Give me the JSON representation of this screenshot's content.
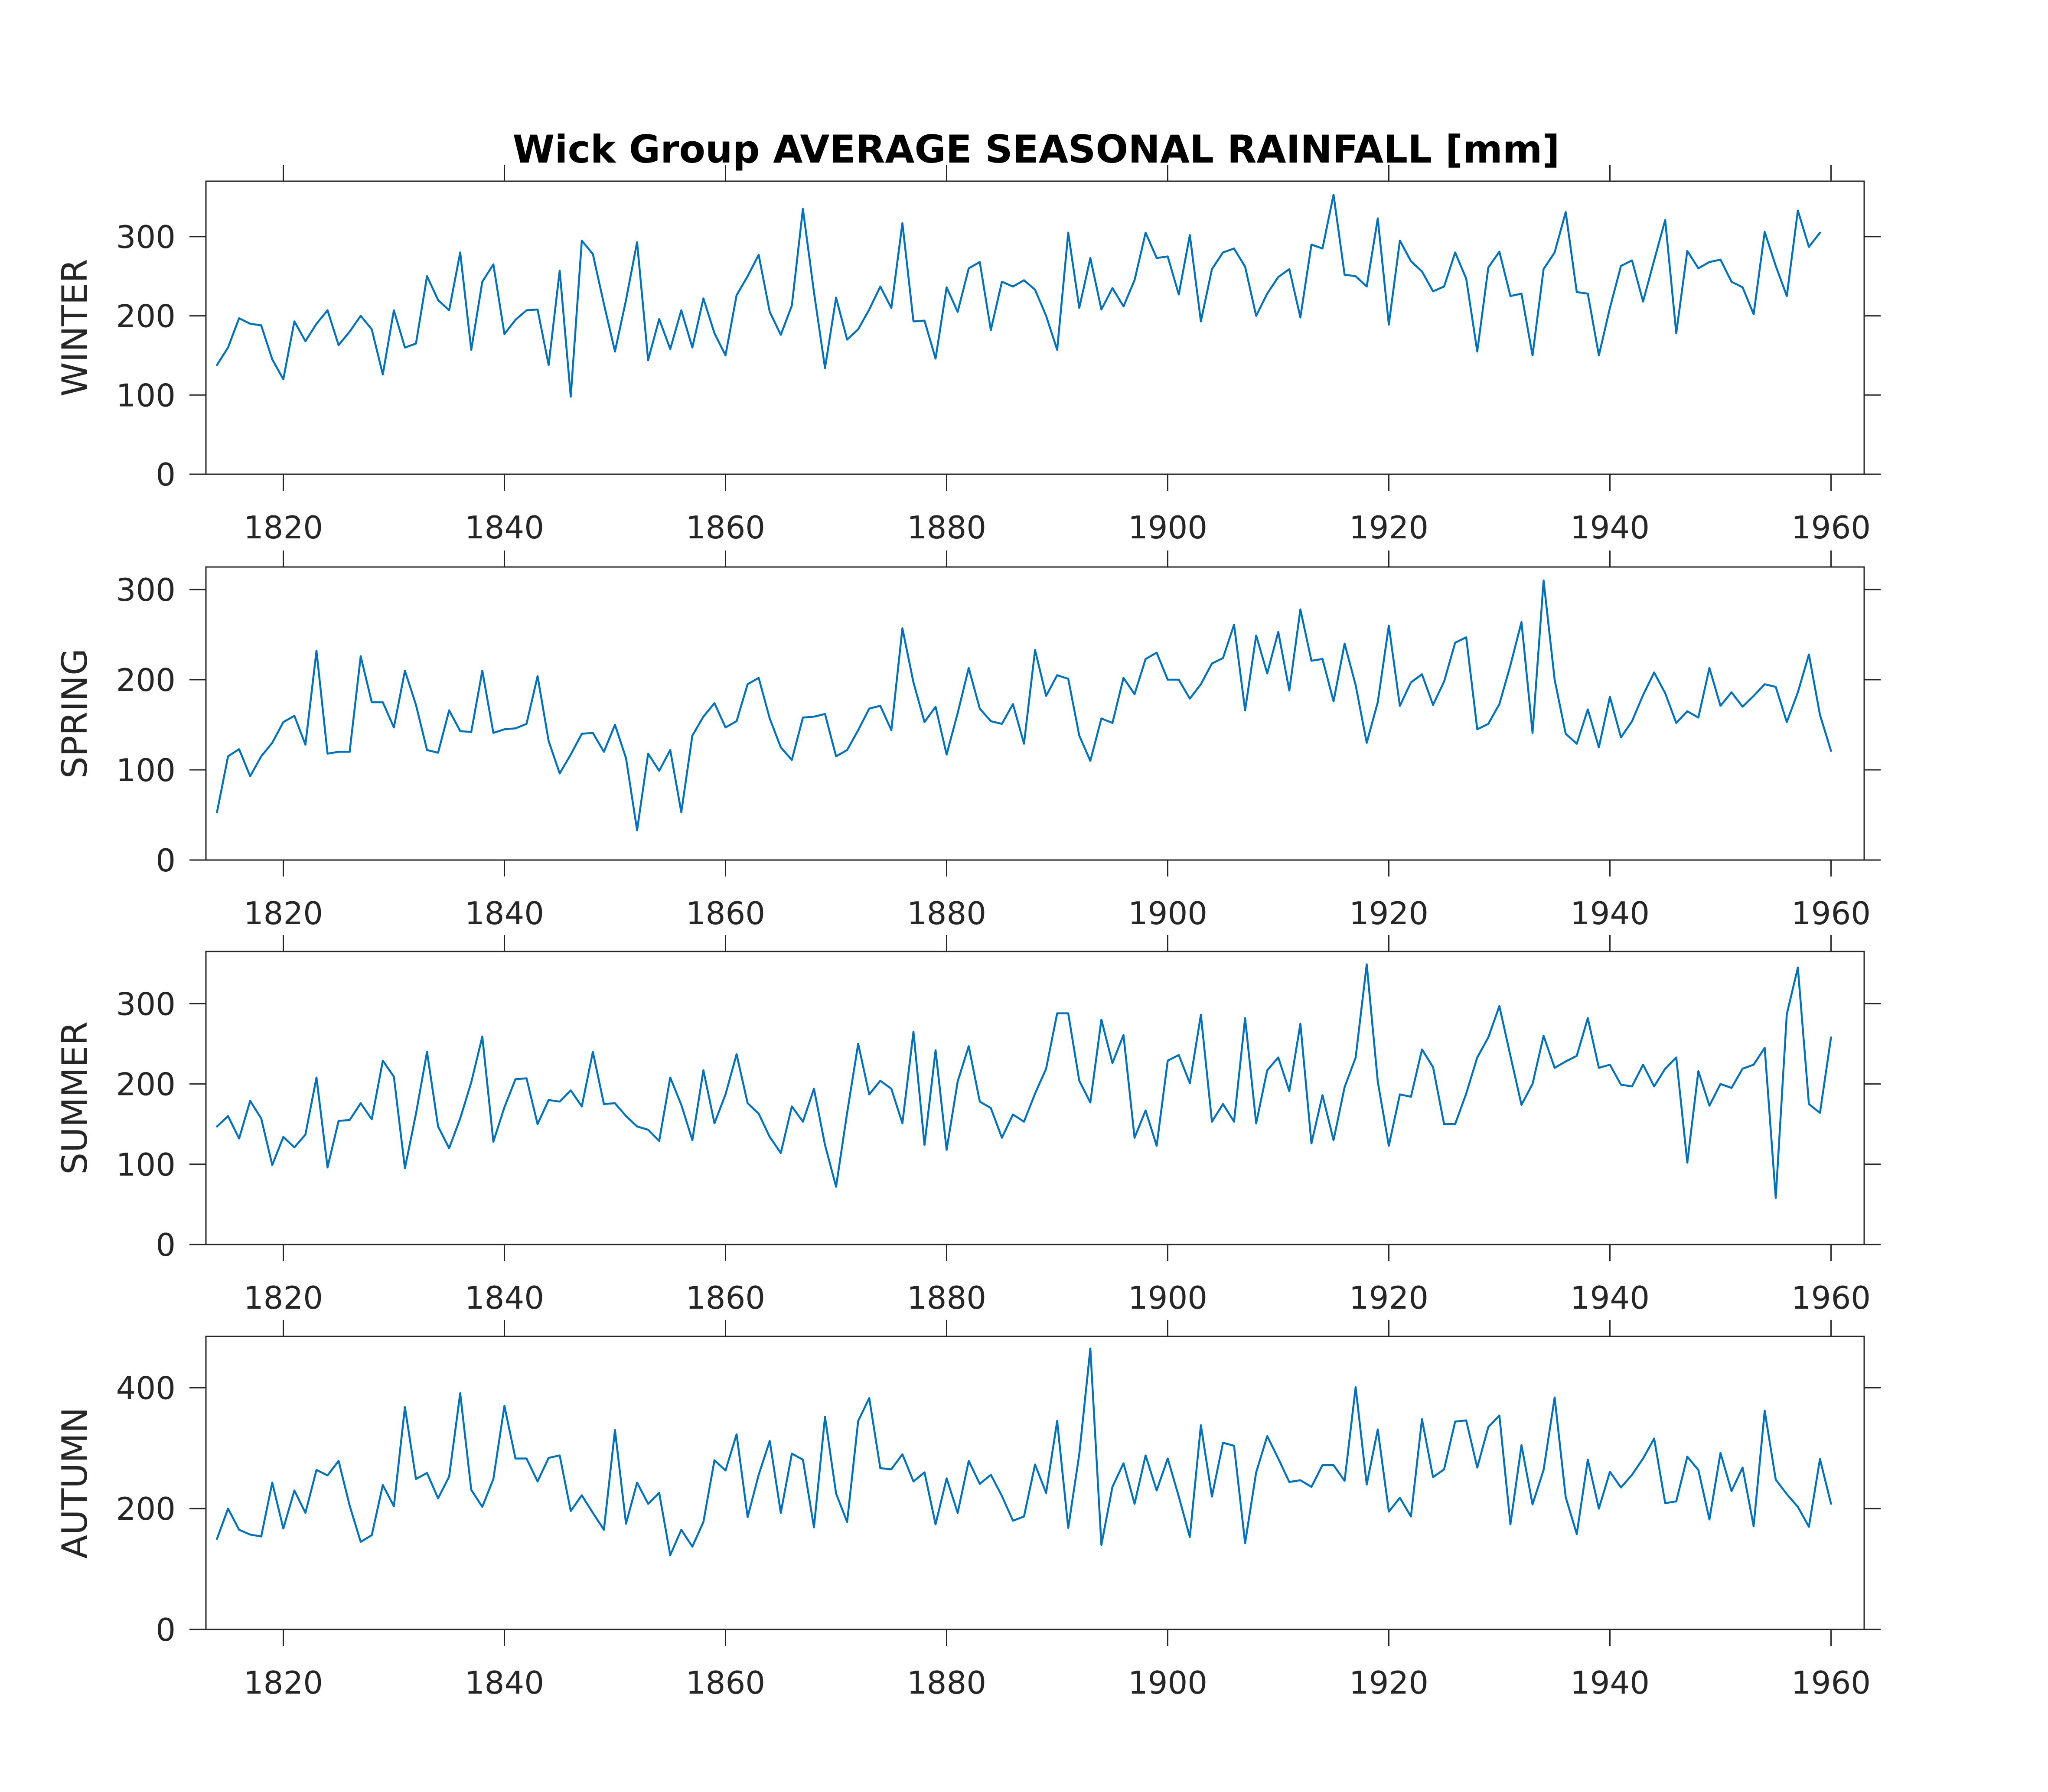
{
  "chart_data": {
    "type": "line",
    "title": "Wick Group AVERAGE SEASONAL RAINFALL [mm]",
    "line_color": "#0072BD",
    "x_start_year": 1814,
    "x_end_year": 1960,
    "xlim": [
      1813,
      1963
    ],
    "xticks": [
      1820,
      1840,
      1860,
      1880,
      1900,
      1920,
      1940,
      1960
    ],
    "panels": [
      {
        "ylabel": "WINTER",
        "ylim": [
          0,
          370
        ],
        "yticks": [
          0,
          100,
          200,
          300
        ],
        "values": [
          138,
          160,
          197,
          190,
          188,
          145,
          120,
          193,
          168,
          190,
          207,
          163,
          180,
          200,
          183,
          126,
          207,
          160,
          165,
          250,
          220,
          207,
          280,
          157,
          243,
          265,
          177,
          195,
          207,
          208,
          138,
          257,
          98,
          295,
          278,
          215,
          155,
          220,
          293,
          144,
          196,
          158,
          207,
          160,
          222,
          178,
          150,
          226,
          250,
          277,
          205,
          176,
          213,
          335,
          230,
          134,
          223,
          170,
          183,
          208,
          237,
          210,
          317,
          193,
          194,
          146,
          236,
          205,
          260,
          268,
          182,
          243,
          237,
          245,
          233,
          200,
          157,
          305,
          210,
          273,
          208,
          235,
          212,
          245,
          305,
          273,
          275,
          227,
          302,
          193,
          259,
          280,
          285,
          262,
          200,
          228,
          249,
          259,
          198,
          290,
          285,
          353,
          252,
          250,
          237,
          323,
          189,
          295,
          269,
          256,
          231,
          237,
          280,
          247,
          155,
          261,
          281,
          225,
          228,
          150,
          259,
          280,
          331,
          230,
          228,
          150,
          210,
          263,
          270,
          218,
          270,
          321,
          178,
          282,
          260,
          268,
          271,
          243,
          236,
          202,
          306,
          263,
          225,
          333,
          287,
          305
        ]
      },
      {
        "ylabel": "SPRING",
        "ylim": [
          0,
          325
        ],
        "yticks": [
          0,
          100,
          200,
          300
        ],
        "values": [
          53,
          115,
          123,
          93,
          115,
          130,
          153,
          160,
          128,
          232,
          118,
          120,
          120,
          226,
          175,
          175,
          147,
          210,
          172,
          122,
          119,
          166,
          143,
          142,
          210,
          141,
          145,
          146,
          151,
          204,
          132,
          96,
          117,
          140,
          141,
          120,
          150,
          113,
          33,
          118,
          99,
          122,
          53,
          138,
          159,
          174,
          147,
          154,
          195,
          202,
          157,
          125,
          111,
          158,
          159,
          162,
          115,
          122,
          144,
          168,
          171,
          144,
          257,
          197,
          153,
          170,
          117,
          163,
          213,
          168,
          154,
          151,
          173,
          129,
          233,
          182,
          205,
          201,
          138,
          110,
          157,
          152,
          202,
          184,
          223,
          230,
          200,
          200,
          179,
          195,
          218,
          224,
          261,
          166,
          249,
          207,
          253,
          188,
          278,
          221,
          223,
          176,
          240,
          194,
          130,
          175,
          260,
          171,
          197,
          206,
          172,
          198,
          241,
          247,
          145,
          151,
          173,
          216,
          264,
          141,
          310,
          200,
          140,
          129,
          167,
          125,
          181,
          136,
          154,
          183,
          208,
          185,
          152,
          165,
          158,
          213,
          171,
          186,
          170,
          182,
          195,
          192,
          153,
          186,
          228,
          161,
          121
        ]
      },
      {
        "ylabel": "SUMMER",
        "ylim": [
          0,
          365
        ],
        "yticks": [
          0,
          100,
          200,
          300
        ],
        "values": [
          147,
          160,
          132,
          179,
          157,
          99,
          134,
          121,
          137,
          208,
          96,
          154,
          155,
          176,
          156,
          229,
          209,
          95,
          163,
          240,
          147,
          120,
          157,
          202,
          259,
          128,
          171,
          206,
          207,
          150,
          180,
          178,
          192,
          172,
          240,
          175,
          176,
          160,
          147,
          143,
          129,
          208,
          174,
          130,
          217,
          151,
          187,
          237,
          176,
          163,
          134,
          114,
          172,
          153,
          194,
          124,
          72,
          164,
          250,
          187,
          204,
          194,
          151,
          265,
          124,
          242,
          118,
          203,
          247,
          178,
          170,
          133,
          162,
          153,
          188,
          219,
          288,
          288,
          204,
          177,
          280,
          226,
          261,
          133,
          167,
          123,
          229,
          236,
          201,
          286,
          153,
          175,
          153,
          282,
          151,
          217,
          233,
          191,
          275,
          126,
          186,
          130,
          196,
          233,
          349,
          203,
          123,
          187,
          184,
          243,
          221,
          150,
          150,
          188,
          233,
          258,
          297,
          235,
          174,
          200,
          260,
          220,
          228,
          235,
          282,
          220,
          224,
          199,
          197,
          224,
          197,
          219,
          233,
          102,
          216,
          173,
          200,
          195,
          219,
          224,
          245,
          58,
          287,
          345,
          175,
          164,
          258
        ]
      },
      {
        "ylabel": "AUTUMN",
        "ylim": [
          0,
          485
        ],
        "yticks": [
          0,
          200,
          400
        ],
        "values": [
          150,
          200,
          165,
          157,
          154,
          243,
          167,
          230,
          193,
          264,
          255,
          279,
          205,
          145,
          156,
          239,
          204,
          368,
          249,
          259,
          217,
          253,
          391,
          231,
          203,
          249,
          370,
          283,
          283,
          245,
          284,
          288,
          196,
          222,
          193,
          165,
          330,
          175,
          243,
          208,
          226,
          123,
          165,
          137,
          178,
          280,
          263,
          323,
          186,
          256,
          312,
          193,
          291,
          281,
          169,
          352,
          225,
          178,
          345,
          383,
          267,
          265,
          290,
          245,
          260,
          174,
          250,
          193,
          279,
          241,
          256,
          221,
          180,
          187,
          273,
          226,
          345,
          168,
          290,
          465,
          140,
          236,
          275,
          208,
          288,
          230,
          283,
          220,
          153,
          338,
          220,
          309,
          304,
          143,
          260,
          320,
          283,
          244,
          247,
          236,
          272,
          272,
          246,
          401,
          240,
          331,
          195,
          218,
          187,
          348,
          252,
          265,
          344,
          346,
          268,
          335,
          354,
          174,
          305,
          207,
          264,
          384,
          219,
          158,
          281,
          200,
          261,
          235,
          256,
          283,
          316,
          209,
          212,
          286,
          264,
          182,
          292,
          229,
          268,
          171,
          362,
          248,
          224,
          203,
          170,
          282,
          208
        ]
      }
    ]
  }
}
